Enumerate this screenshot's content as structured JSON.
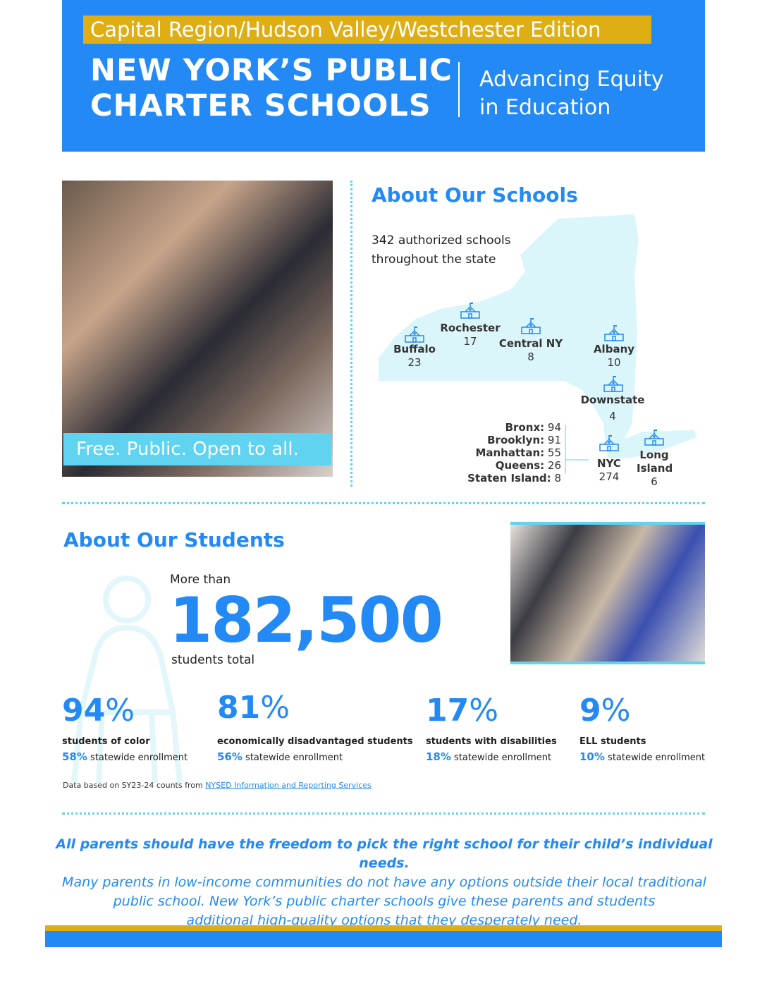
{
  "header": {
    "edition": "Capital Region/Hudson Valley/Westchester Edition",
    "title_line1": "NEW YORK’S PUBLIC",
    "title_line2": "CHARTER SCHOOLS",
    "tagline_line1": "Advancing Equity",
    "tagline_line2": "in Education"
  },
  "photo1": {
    "caption": "Free. Public. Open to all."
  },
  "schools": {
    "heading": "About Our Schools",
    "summary_line1": "342 authorized schools",
    "summary_line2": "throughout the state",
    "regions": [
      {
        "name": "Buffalo",
        "count": "23"
      },
      {
        "name": "Rochester",
        "count": "17"
      },
      {
        "name": "Central NY",
        "count": "8"
      },
      {
        "name": "Albany",
        "count": "10"
      },
      {
        "name": "Downstate",
        "count": "4"
      },
      {
        "name": "NYC",
        "count": "274"
      },
      {
        "name": "Long Island",
        "count": "6"
      }
    ],
    "boroughs": [
      {
        "name": "Bronx:",
        "count": "94"
      },
      {
        "name": "Brooklyn:",
        "count": "91"
      },
      {
        "name": "Manhattan:",
        "count": "55"
      },
      {
        "name": "Queens:",
        "count": "26"
      },
      {
        "name": "Staten Island:",
        "count": "8"
      }
    ],
    "icon": "school-building-icon"
  },
  "students": {
    "heading": "About Our Students",
    "more_than": "More than",
    "total": "182,500",
    "total_label": "students total",
    "stats": [
      {
        "value": "94",
        "unit": "%",
        "label": "students of color",
        "statewide": "58%",
        "statewide_label": "statewide enrollment"
      },
      {
        "value": "81",
        "unit": "%",
        "label": "economically disadvantaged students",
        "statewide": "56%",
        "statewide_label": "statewide enrollment"
      },
      {
        "value": "17",
        "unit": "%",
        "label": "students with disabilities",
        "statewide": "18%",
        "statewide_label": "statewide enrollment"
      },
      {
        "value": "9",
        "unit": "%",
        "label": "ELL students",
        "statewide": "10%",
        "statewide_label": "statewide enrollment"
      }
    ],
    "footnote": "Data based on SY23-24 counts from ",
    "footnote_link": "NYSED Information and Reporting Services"
  },
  "quote": {
    "bold": "All parents should have the freedom to pick the right school for their child’s individual needs.",
    "line1": "Many parents in low-income communities do not have any options outside their local traditional",
    "line2": "public school. New York’s public charter schools give these parents and students",
    "line3": "additional high-quality options that they desperately need."
  },
  "colors": {
    "blue": "#2389f5",
    "yellow": "#dfae14",
    "cyan": "#5fd3ef",
    "map": "#dbf6fb"
  }
}
